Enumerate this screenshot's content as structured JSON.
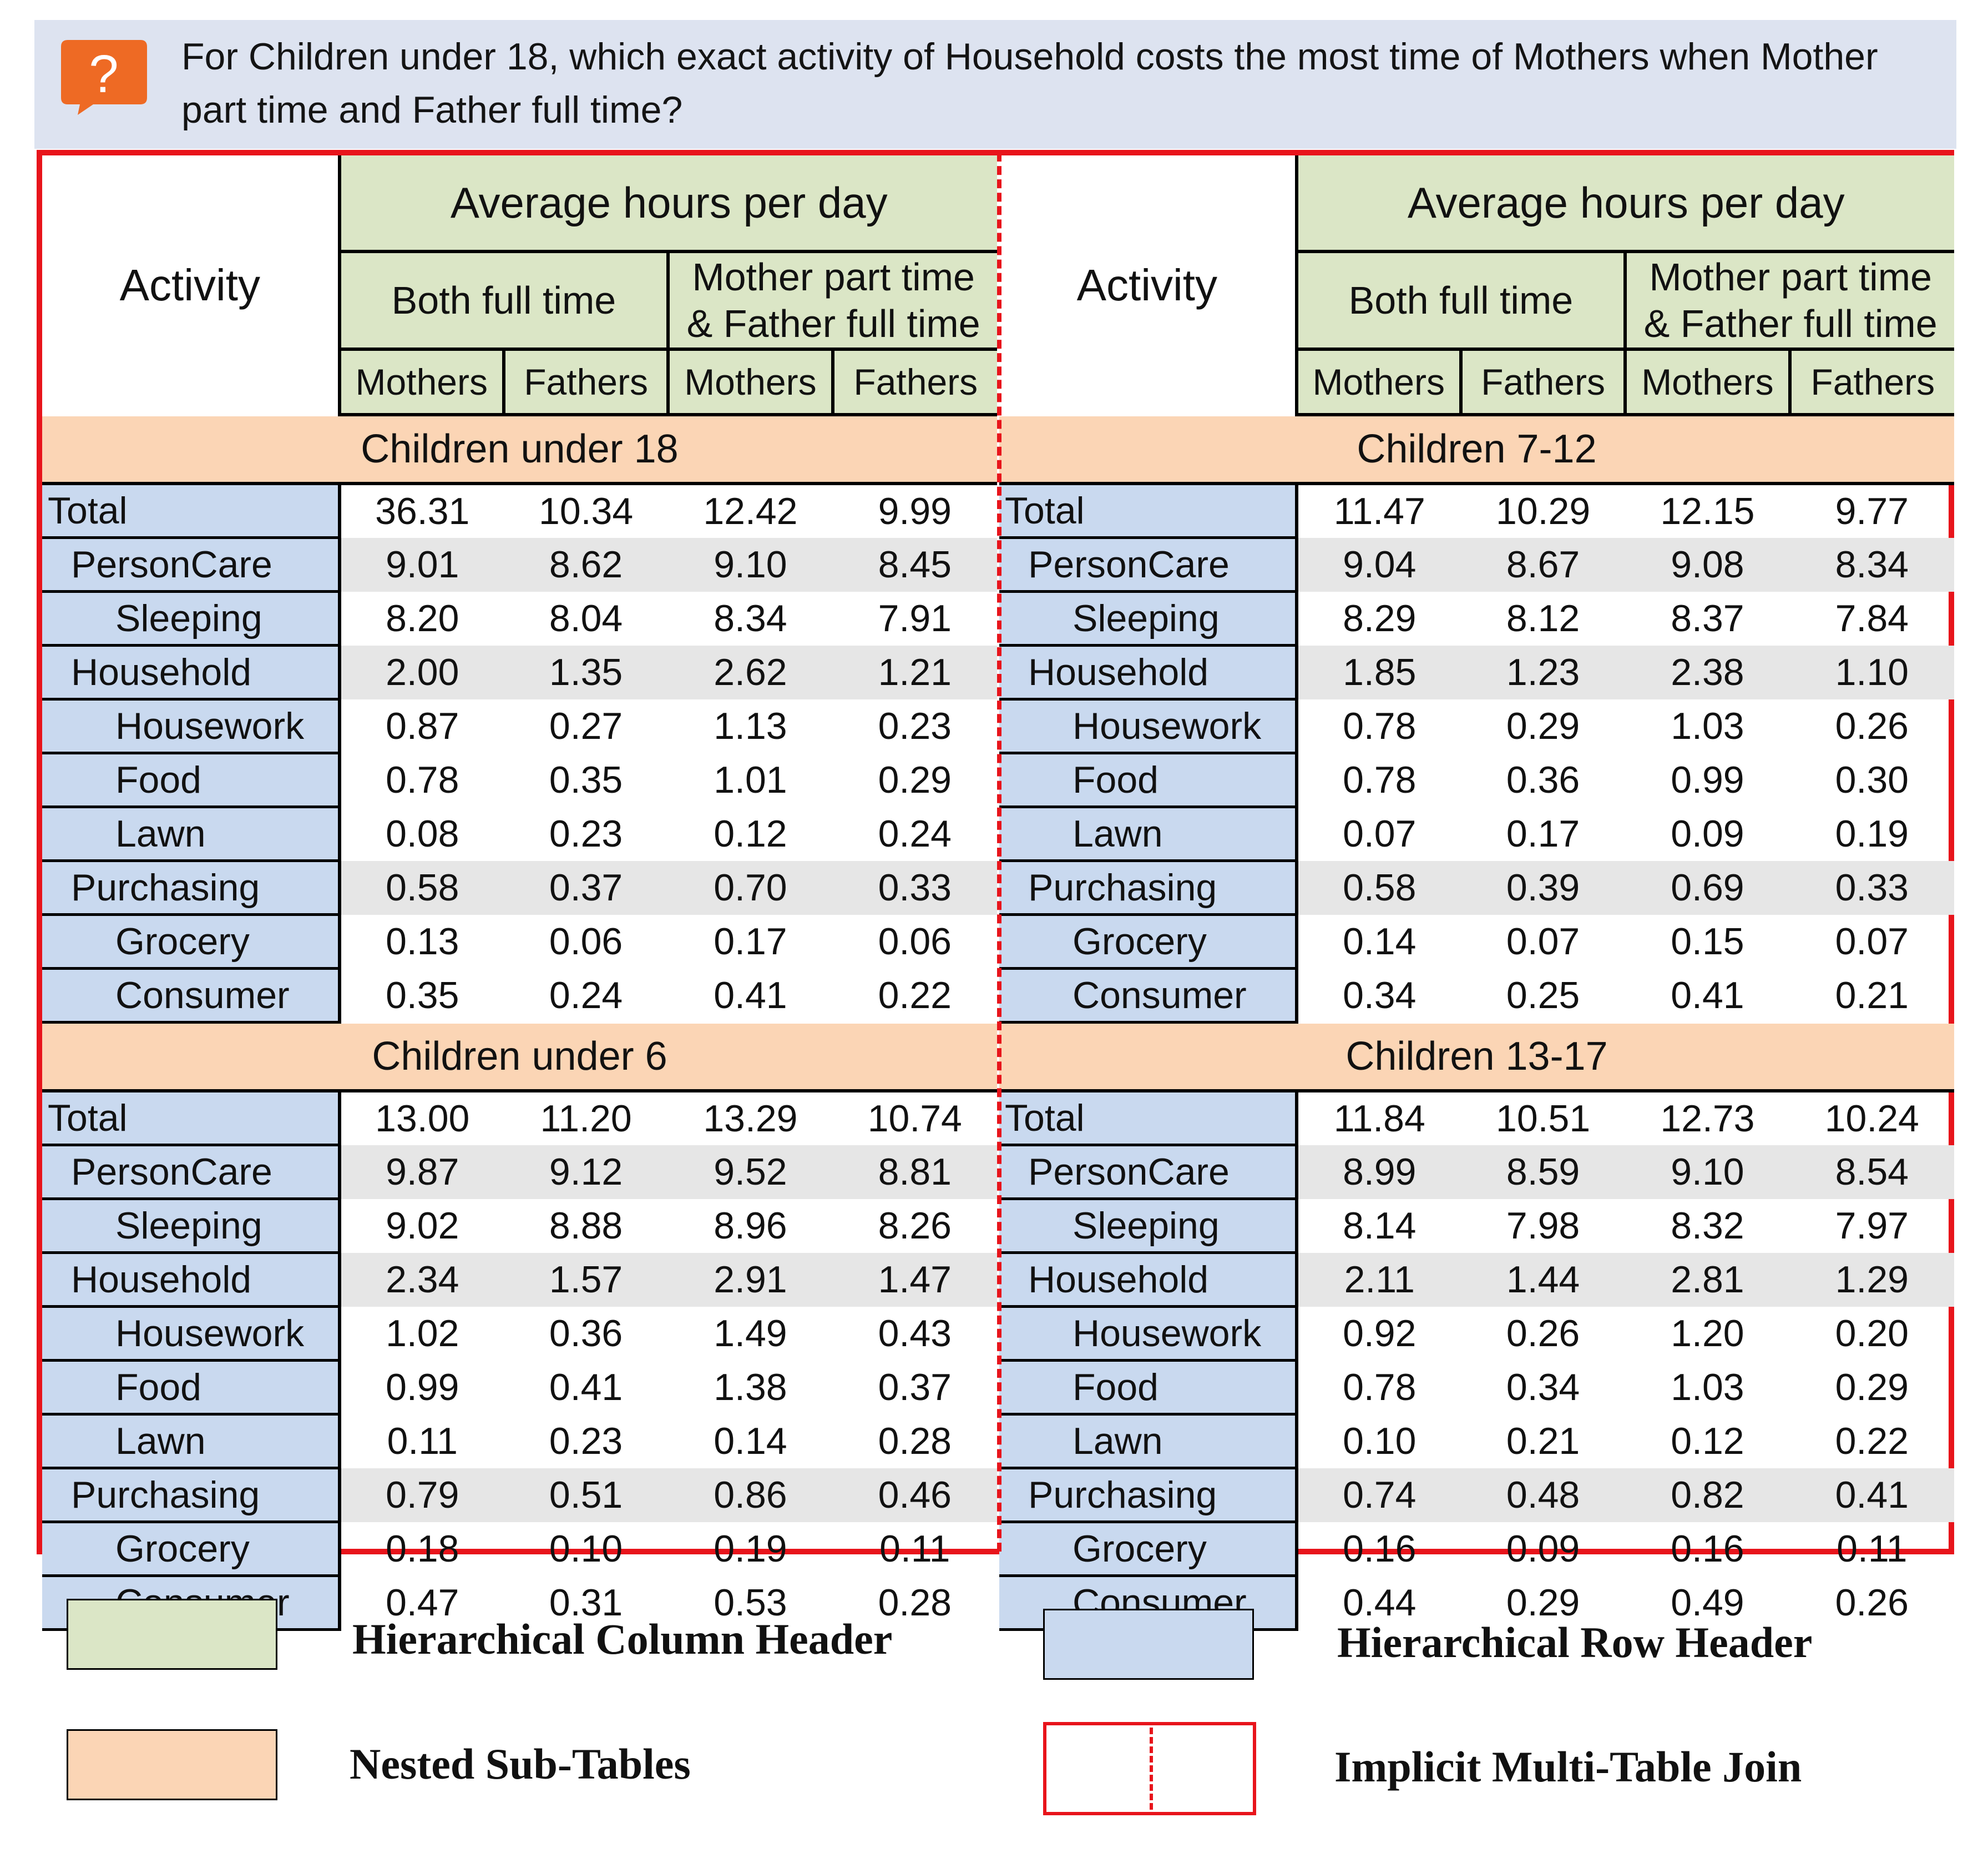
{
  "question": "For Children under 18, which exact activity of Household costs the most time of Mothers when Mother part time and Father full time?",
  "icon": "question-bubble-icon",
  "colors": {
    "column_header": "#dbe6c6",
    "row_header": "#c9d9ef",
    "sub_table": "#fbd5b5",
    "join_border": "#e8141b",
    "banner": "#dde3f0"
  },
  "header": {
    "activity": "Activity",
    "group": "Average hours per day",
    "both": "Both full time",
    "part_line1": "Mother part time",
    "part_line2": "& Father full time",
    "mothers": "Mothers",
    "fathers": "Fathers"
  },
  "left": {
    "sections": [
      {
        "title": "Children under 18",
        "rows": [
          {
            "label": "Total",
            "v": [
              "36.31",
              "10.34",
              "12.42",
              "9.99"
            ]
          },
          {
            "label": "PersonCare",
            "v": [
              "9.01",
              "8.62",
              "9.10",
              "8.45"
            ]
          },
          {
            "label": "Sleeping",
            "v": [
              "8.20",
              "8.04",
              "8.34",
              "7.91"
            ]
          },
          {
            "label": "Household",
            "v": [
              "2.00",
              "1.35",
              "2.62",
              "1.21"
            ]
          },
          {
            "label": "Housework",
            "v": [
              "0.87",
              "0.27",
              "1.13",
              "0.23"
            ]
          },
          {
            "label": "Food",
            "v": [
              "0.78",
              "0.35",
              "1.01",
              "0.29"
            ]
          },
          {
            "label": "Lawn",
            "v": [
              "0.08",
              "0.23",
              "0.12",
              "0.24"
            ]
          },
          {
            "label": "Purchasing",
            "v": [
              "0.58",
              "0.37",
              "0.70",
              "0.33"
            ]
          },
          {
            "label": "Grocery",
            "v": [
              "0.13",
              "0.06",
              "0.17",
              "0.06"
            ]
          },
          {
            "label": "Consumer",
            "v": [
              "0.35",
              "0.24",
              "0.41",
              "0.22"
            ]
          }
        ]
      },
      {
        "title": "Children under 6",
        "rows": [
          {
            "label": "Total",
            "v": [
              "13.00",
              "11.20",
              "13.29",
              "10.74"
            ]
          },
          {
            "label": "PersonCare",
            "v": [
              "9.87",
              "9.12",
              "9.52",
              "8.81"
            ]
          },
          {
            "label": "Sleeping",
            "v": [
              "9.02",
              "8.88",
              "8.96",
              "8.26"
            ]
          },
          {
            "label": "Household",
            "v": [
              "2.34",
              "1.57",
              "2.91",
              "1.47"
            ]
          },
          {
            "label": "Housework",
            "v": [
              "1.02",
              "0.36",
              "1.49",
              "0.43"
            ]
          },
          {
            "label": "Food",
            "v": [
              "0.99",
              "0.41",
              "1.38",
              "0.37"
            ]
          },
          {
            "label": "Lawn",
            "v": [
              "0.11",
              "0.23",
              "0.14",
              "0.28"
            ]
          },
          {
            "label": "Purchasing",
            "v": [
              "0.79",
              "0.51",
              "0.86",
              "0.46"
            ]
          },
          {
            "label": "Grocery",
            "v": [
              "0.18",
              "0.10",
              "0.19",
              "0.11"
            ]
          },
          {
            "label": "Consumer",
            "v": [
              "0.47",
              "0.31",
              "0.53",
              "0.28"
            ]
          }
        ]
      }
    ]
  },
  "right": {
    "sections": [
      {
        "title": "Children 7-12",
        "rows": [
          {
            "label": "Total",
            "v": [
              "11.47",
              "10.29",
              "12.15",
              "9.77"
            ]
          },
          {
            "label": "PersonCare",
            "v": [
              "9.04",
              "8.67",
              "9.08",
              "8.34"
            ]
          },
          {
            "label": "Sleeping",
            "v": [
              "8.29",
              "8.12",
              "8.37",
              "7.84"
            ]
          },
          {
            "label": "Household",
            "v": [
              "1.85",
              "1.23",
              "2.38",
              "1.10"
            ]
          },
          {
            "label": "Housework",
            "v": [
              "0.78",
              "0.29",
              "1.03",
              "0.26"
            ]
          },
          {
            "label": "Food",
            "v": [
              "0.78",
              "0.36",
              "0.99",
              "0.30"
            ]
          },
          {
            "label": "Lawn",
            "v": [
              "0.07",
              "0.17",
              "0.09",
              "0.19"
            ]
          },
          {
            "label": "Purchasing",
            "v": [
              "0.58",
              "0.39",
              "0.69",
              "0.33"
            ]
          },
          {
            "label": "Grocery",
            "v": [
              "0.14",
              "0.07",
              "0.15",
              "0.07"
            ]
          },
          {
            "label": "Consumer",
            "v": [
              "0.34",
              "0.25",
              "0.41",
              "0.21"
            ]
          }
        ]
      },
      {
        "title": "Children 13-17",
        "rows": [
          {
            "label": "Total",
            "v": [
              "11.84",
              "10.51",
              "12.73",
              "10.24"
            ]
          },
          {
            "label": "PersonCare",
            "v": [
              "8.99",
              "8.59",
              "9.10",
              "8.54"
            ]
          },
          {
            "label": "Sleeping",
            "v": [
              "8.14",
              "7.98",
              "8.32",
              "7.97"
            ]
          },
          {
            "label": "Household",
            "v": [
              "2.11",
              "1.44",
              "2.81",
              "1.29"
            ]
          },
          {
            "label": "Housework",
            "v": [
              "0.92",
              "0.26",
              "1.20",
              "0.20"
            ]
          },
          {
            "label": "Food",
            "v": [
              "0.78",
              "0.34",
              "1.03",
              "0.29"
            ]
          },
          {
            "label": "Lawn",
            "v": [
              "0.10",
              "0.21",
              "0.12",
              "0.22"
            ]
          },
          {
            "label": "Purchasing",
            "v": [
              "0.74",
              "0.48",
              "0.82",
              "0.41"
            ]
          },
          {
            "label": "Grocery",
            "v": [
              "0.16",
              "0.09",
              "0.16",
              "0.11"
            ]
          },
          {
            "label": "Consumer",
            "v": [
              "0.44",
              "0.29",
              "0.49",
              "0.26"
            ]
          }
        ]
      }
    ]
  },
  "legend": {
    "column_header": "Hierarchical Column Header",
    "row_header": "Hierarchical Row Header",
    "sub_tables": "Nested Sub-Tables",
    "multi_join": "Implicit Multi-Table Join"
  }
}
